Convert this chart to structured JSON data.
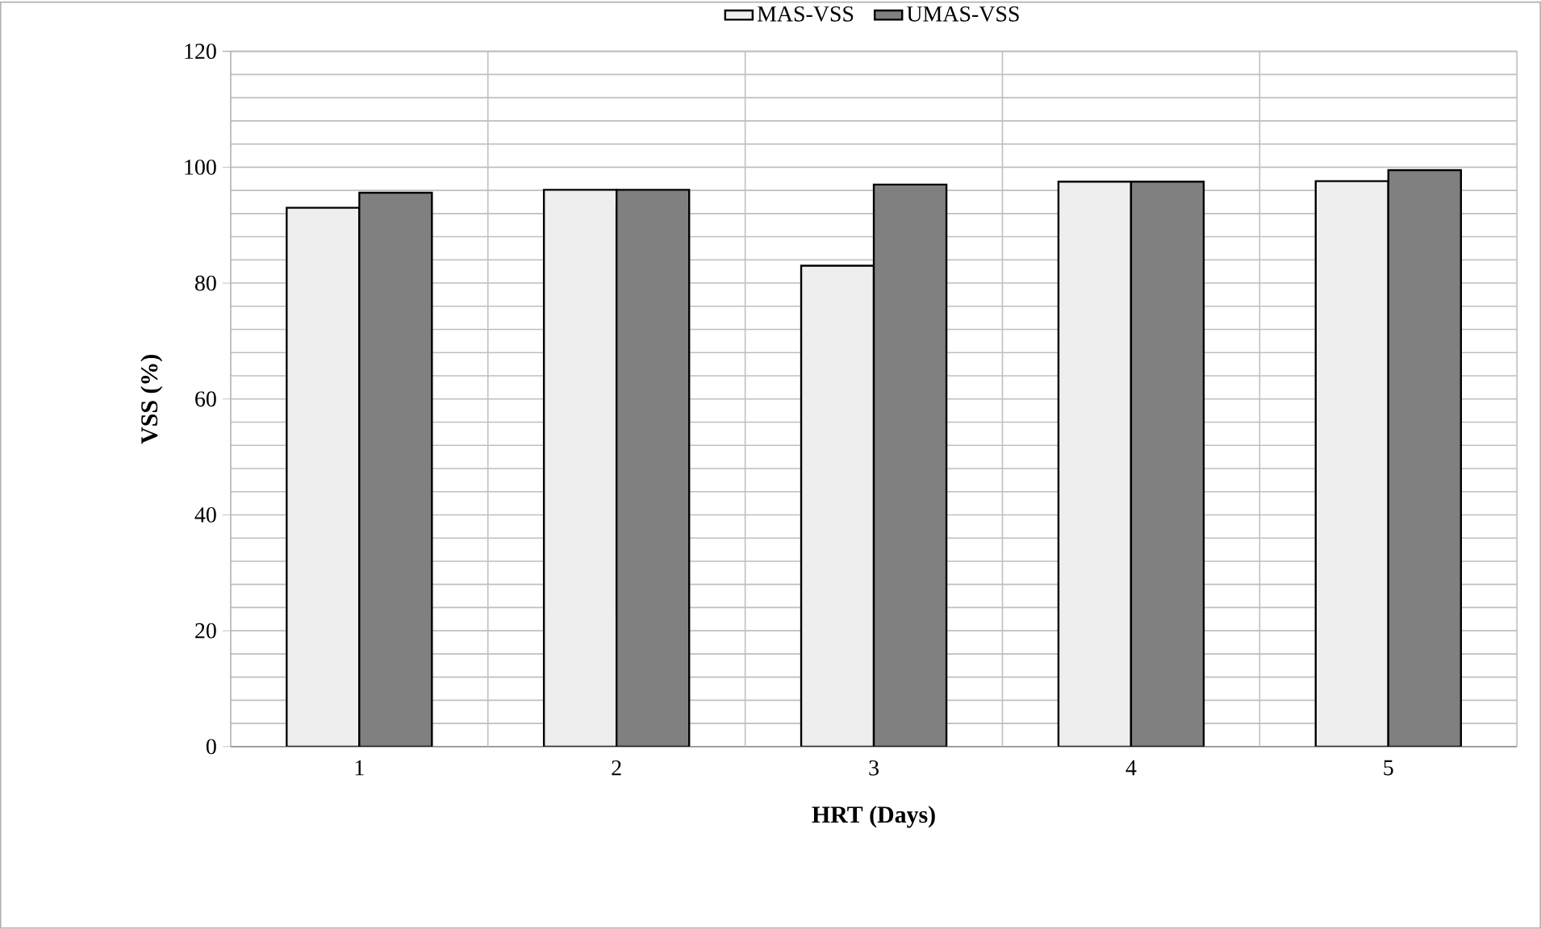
{
  "chart_data": {
    "type": "bar",
    "xlabel": "HRT (Days)",
    "ylabel": "VSS (%)",
    "categories": [
      "1",
      "2",
      "3",
      "4",
      "5"
    ],
    "series": [
      {
        "name": "MAS-VSS",
        "color": "#eeeeee",
        "values": [
          93,
          96.1,
          83,
          97.5,
          97.6
        ]
      },
      {
        "name": "UMAS-VSS",
        "color": "#808080",
        "values": [
          95.6,
          96.1,
          97,
          97.5,
          99.5
        ]
      }
    ],
    "ylim": [
      0,
      120
    ],
    "yticks": [
      0,
      20,
      40,
      60,
      80,
      100,
      120
    ],
    "grid": true,
    "legend": "top"
  }
}
